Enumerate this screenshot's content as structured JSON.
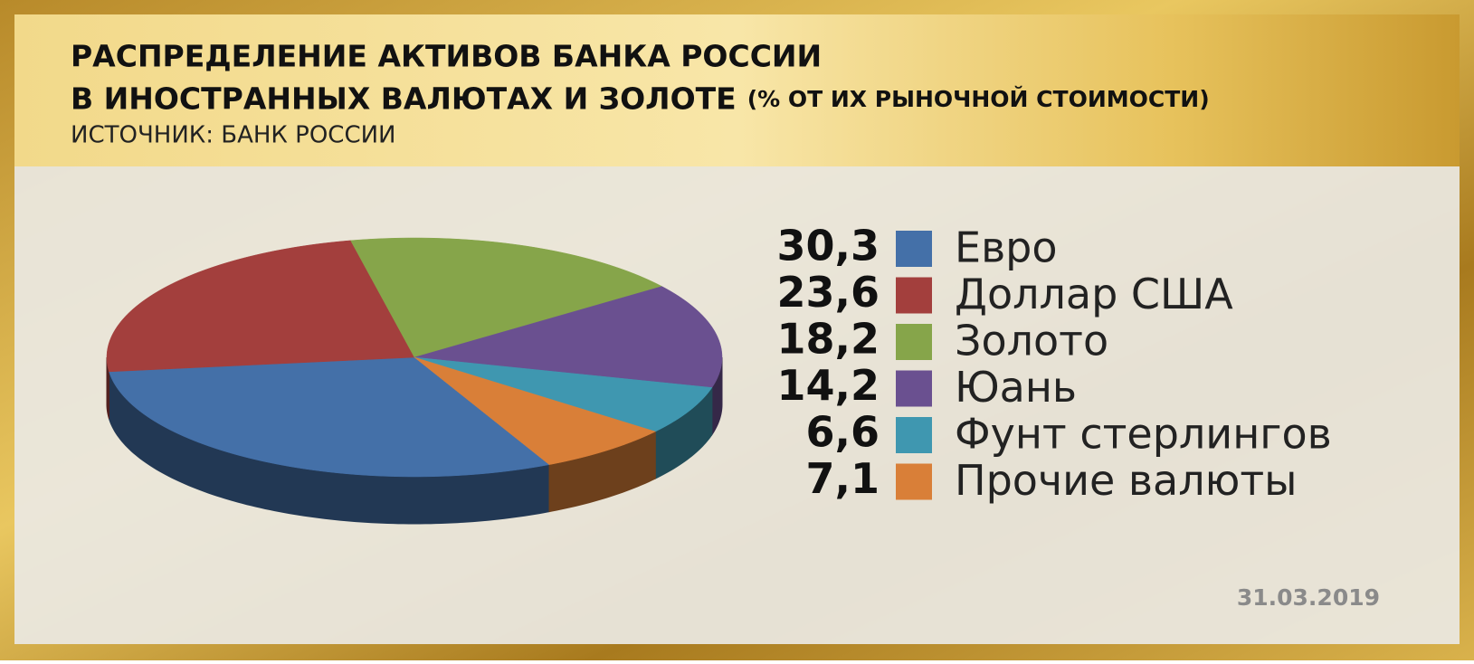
{
  "chart_data": {
    "type": "pie",
    "title_lines": [
      "РАСПРЕДЕЛЕНИЕ АКТИВОВ БАНКА РОССИИ",
      "В ИНОСТРАННЫХ ВАЛЮТАХ И ЗОЛОТЕ"
    ],
    "subtitle": "(% ОТ ИХ РЫНОЧНОЙ СТОИМОСТИ)",
    "source": "ИСТОЧНИК: БАНК РОССИИ",
    "date": "31.03.2019",
    "categories": [
      "Евро",
      "Доллар США",
      "Золото",
      "Юань",
      "Фунт стерлингов",
      "Прочие валюты"
    ],
    "values": [
      30.3,
      23.6,
      18.2,
      14.2,
      6.6,
      7.1
    ],
    "value_labels": [
      "30,3",
      "23,6",
      "18,2",
      "14,2",
      "6,6",
      "7,1"
    ],
    "colors": [
      "#4470a8",
      "#a33f3d",
      "#86a54a",
      "#6a5090",
      "#3f97b0",
      "#d97f38"
    ]
  }
}
